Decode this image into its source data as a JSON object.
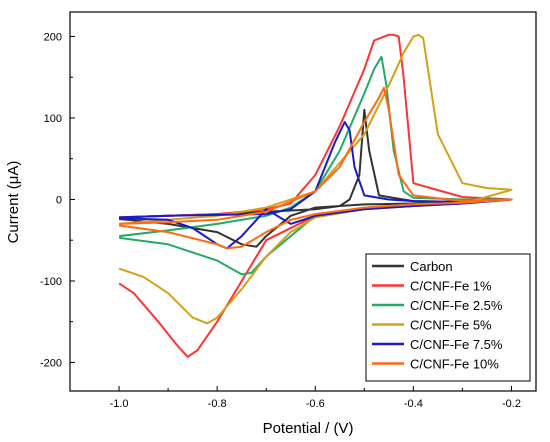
{
  "chart_data": {
    "type": "line",
    "xlabel": "Potential / (V)",
    "ylabel": "Current (μA)",
    "xlim": [
      -1.1,
      -0.15
    ],
    "ylim": [
      -235,
      230
    ],
    "xticks": [
      "-1.0",
      "-0.8",
      "-0.6",
      "-0.4",
      "-0.2"
    ],
    "yticks": [
      "200",
      "100",
      "0",
      "-100",
      "-200"
    ],
    "xtick_values": [
      -1.0,
      -0.8,
      -0.6,
      -0.4,
      -0.2
    ],
    "ytick_values": [
      200,
      100,
      0,
      -100,
      -200
    ],
    "legend_position": "bottom-right",
    "grid": false,
    "series": [
      {
        "name": "Carbon",
        "color": "#333333",
        "x": [
          -1.0,
          -0.9,
          -0.8,
          -0.7,
          -0.6,
          -0.55,
          -0.53,
          -0.51,
          -0.5,
          -0.49,
          -0.47,
          -0.4,
          -0.3,
          -0.2,
          -0.3,
          -0.4,
          -0.5,
          -0.6,
          -0.65,
          -0.7,
          -0.72,
          -0.75,
          -0.8,
          -0.9,
          -1.0
        ],
        "y": [
          -22,
          -20,
          -18,
          -15,
          -12,
          -8,
          0,
          30,
          110,
          60,
          5,
          -2,
          -3,
          0,
          -4,
          -5,
          -6,
          -10,
          -20,
          -45,
          -58,
          -55,
          -40,
          -30,
          -24
        ]
      },
      {
        "name": "C/CNF-Fe 1%",
        "color": "#ff3333",
        "x": [
          -1.0,
          -0.9,
          -0.8,
          -0.7,
          -0.65,
          -0.6,
          -0.55,
          -0.5,
          -0.48,
          -0.45,
          -0.44,
          -0.43,
          -0.42,
          -0.4,
          -0.3,
          -0.2,
          -0.3,
          -0.4,
          -0.5,
          -0.6,
          -0.7,
          -0.75,
          -0.8,
          -0.84,
          -0.86,
          -0.88,
          -0.92,
          -0.97,
          -1.0
        ],
        "y": [
          -22,
          -20,
          -18,
          -12,
          -5,
          30,
          90,
          160,
          195,
          202,
          202,
          200,
          150,
          20,
          3,
          0,
          -5,
          -8,
          -12,
          -20,
          -50,
          -100,
          -150,
          -185,
          -193,
          -180,
          -150,
          -115,
          -103
        ]
      },
      {
        "name": "C/CNF-Fe 2.5%",
        "color": "#22aa66",
        "x": [
          -1.0,
          -0.9,
          -0.8,
          -0.7,
          -0.65,
          -0.6,
          -0.55,
          -0.5,
          -0.48,
          -0.465,
          -0.455,
          -0.44,
          -0.42,
          -0.4,
          -0.3,
          -0.2,
          -0.3,
          -0.4,
          -0.5,
          -0.6,
          -0.65,
          -0.7,
          -0.73,
          -0.75,
          -0.8,
          -0.9,
          -1.0
        ],
        "y": [
          -45,
          -38,
          -30,
          -20,
          -10,
          10,
          60,
          130,
          160,
          175,
          140,
          60,
          10,
          2,
          0,
          0,
          -3,
          -6,
          -10,
          -20,
          -45,
          -70,
          -90,
          -92,
          -75,
          -55,
          -47
        ]
      },
      {
        "name": "C/CNF-Fe 5%",
        "color": "#d4a017",
        "x": [
          -1.0,
          -0.9,
          -0.8,
          -0.7,
          -0.6,
          -0.5,
          -0.45,
          -0.42,
          -0.4,
          -0.39,
          -0.38,
          -0.35,
          -0.3,
          -0.25,
          -0.2,
          -0.21,
          -0.3,
          -0.4,
          -0.5,
          -0.6,
          -0.65,
          -0.7,
          -0.75,
          -0.8,
          -0.82,
          -0.85,
          -0.9,
          -0.95,
          -1.0
        ],
        "y": [
          -30,
          -25,
          -20,
          -10,
          10,
          80,
          140,
          180,
          200,
          202,
          198,
          80,
          20,
          14,
          12,
          10,
          -5,
          -8,
          -12,
          -22,
          -40,
          -70,
          -110,
          -145,
          -152,
          -145,
          -115,
          -95,
          -85
        ]
      },
      {
        "name": "C/CNF-Fe 7.5%",
        "color": "#1a1acc",
        "x": [
          -1.0,
          -0.9,
          -0.8,
          -0.7,
          -0.65,
          -0.6,
          -0.56,
          -0.54,
          -0.53,
          -0.52,
          -0.5,
          -0.45,
          -0.4,
          -0.3,
          -0.2,
          -0.3,
          -0.4,
          -0.5,
          -0.6,
          -0.65,
          -0.7,
          -0.75,
          -0.78,
          -0.8,
          -0.85,
          -0.9,
          -1.0
        ],
        "y": [
          -22,
          -20,
          -19,
          -18,
          -12,
          10,
          70,
          95,
          85,
          40,
          5,
          0,
          -2,
          -3,
          0,
          -5,
          -8,
          -12,
          -20,
          -30,
          -12,
          -45,
          -60,
          -55,
          -35,
          -25,
          -23
        ]
      },
      {
        "name": "C/CNF-Fe 10%",
        "color": "#ff6a13",
        "x": [
          -1.0,
          -0.9,
          -0.8,
          -0.7,
          -0.6,
          -0.55,
          -0.5,
          -0.47,
          -0.46,
          -0.45,
          -0.43,
          -0.4,
          -0.3,
          -0.2,
          -0.3,
          -0.4,
          -0.5,
          -0.6,
          -0.65,
          -0.7,
          -0.75,
          -0.78,
          -0.8,
          -0.9,
          -1.0
        ],
        "y": [
          -30,
          -28,
          -25,
          -15,
          10,
          40,
          95,
          125,
          137,
          110,
          30,
          5,
          -2,
          0,
          -4,
          -6,
          -10,
          -18,
          -25,
          -40,
          -58,
          -60,
          -55,
          -40,
          -32
        ]
      }
    ]
  }
}
